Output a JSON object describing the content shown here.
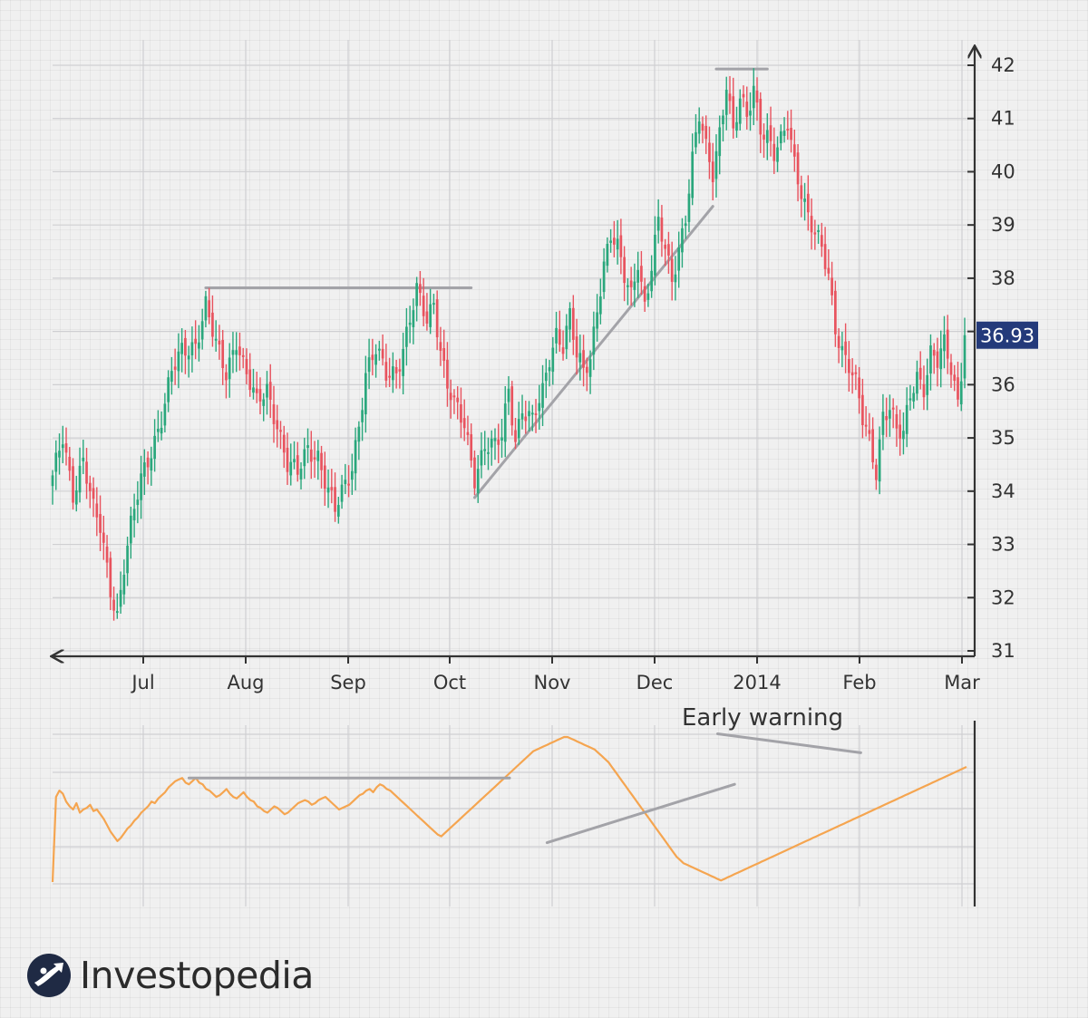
{
  "colors": {
    "up": "#2aa77c",
    "down": "#e8535e",
    "indicator": "#f5a550",
    "trendline": "#a3a3a8",
    "axis": "#333333",
    "price_tag_bg": "#243a7a"
  },
  "logo": {
    "text": "Investopedia",
    "icon": "investopedia-logo-icon"
  },
  "chart_data": [
    {
      "type": "candlestick",
      "x_labels": [
        "Jul",
        "Aug",
        "Sep",
        "Oct",
        "Nov",
        "Dec",
        "2014",
        "Feb",
        "Mar"
      ],
      "y_ticks": [
        31,
        32,
        33,
        34,
        35,
        36,
        37,
        38,
        39,
        40,
        41,
        42
      ],
      "y_tick_labels": [
        "31",
        "32",
        "33",
        "34",
        "35",
        "36",
        "",
        "38",
        "39",
        "40",
        "41",
        "42"
      ],
      "ylim": [
        31,
        42
      ],
      "y_axis_side": "right",
      "last_price_label": "36.93",
      "last_price": 36.93,
      "price_waypoints": [
        [
          0,
          34.2
        ],
        [
          3,
          35.0
        ],
        [
          6,
          34.0
        ],
        [
          9,
          34.6
        ],
        [
          12,
          33.6
        ],
        [
          14,
          33.3
        ],
        [
          17,
          32.2
        ],
        [
          19,
          31.7
        ],
        [
          21,
          32.6
        ],
        [
          23,
          33.3
        ],
        [
          26,
          34.2
        ],
        [
          29,
          34.8
        ],
        [
          32,
          35.4
        ],
        [
          35,
          36.2
        ],
        [
          38,
          36.6
        ],
        [
          42,
          36.8
        ],
        [
          45,
          37.5
        ],
        [
          48,
          36.7
        ],
        [
          51,
          36.2
        ],
        [
          54,
          36.9
        ],
        [
          57,
          36.2
        ],
        [
          60,
          35.6
        ],
        [
          63,
          35.9
        ],
        [
          66,
          35.3
        ],
        [
          69,
          34.5
        ],
        [
          72,
          34.3
        ],
        [
          75,
          34.8
        ],
        [
          78,
          34.7
        ],
        [
          81,
          34.0
        ],
        [
          83,
          33.6
        ],
        [
          86,
          34.1
        ],
        [
          88,
          34.5
        ],
        [
          90,
          35.3
        ],
        [
          92,
          36.2
        ],
        [
          95,
          36.6
        ],
        [
          98,
          36.2
        ],
        [
          101,
          36.3
        ],
        [
          103,
          36.7
        ],
        [
          105,
          37.2
        ],
        [
          107,
          37.7
        ],
        [
          110,
          37.2
        ],
        [
          112,
          37.6
        ],
        [
          114,
          36.7
        ],
        [
          116,
          36.0
        ],
        [
          118,
          35.6
        ],
        [
          121,
          35.2
        ],
        [
          124,
          34.3
        ],
        [
          127,
          34.9
        ],
        [
          130,
          34.8
        ],
        [
          132,
          35.0
        ],
        [
          134,
          35.9
        ],
        [
          136,
          35.0
        ],
        [
          138,
          35.6
        ],
        [
          141,
          35.3
        ],
        [
          144,
          35.8
        ],
        [
          146,
          36.5
        ],
        [
          148,
          37.0
        ],
        [
          150,
          36.8
        ],
        [
          152,
          37.3
        ],
        [
          154,
          36.5
        ],
        [
          156,
          36.2
        ],
        [
          158,
          36.5
        ],
        [
          160,
          37.5
        ],
        [
          162,
          38.3
        ],
        [
          164,
          38.8
        ],
        [
          166,
          38.5
        ],
        [
          168,
          38.0
        ],
        [
          170,
          37.7
        ],
        [
          172,
          38.4
        ],
        [
          174,
          37.5
        ],
        [
          176,
          38.2
        ],
        [
          178,
          39.0
        ],
        [
          180,
          38.5
        ],
        [
          182,
          38.0
        ],
        [
          184,
          38.6
        ],
        [
          186,
          39.2
        ],
        [
          188,
          40.2
        ],
        [
          190,
          41.0
        ],
        [
          192,
          40.4
        ],
        [
          194,
          40.0
        ],
        [
          196,
          40.8
        ],
        [
          198,
          41.7
        ],
        [
          200,
          40.7
        ],
        [
          202,
          41.3
        ],
        [
          204,
          41.0
        ],
        [
          206,
          41.6
        ],
        [
          208,
          40.9
        ],
        [
          210,
          40.7
        ],
        [
          212,
          40.3
        ],
        [
          214,
          40.5
        ],
        [
          216,
          40.9
        ],
        [
          218,
          40.2
        ],
        [
          220,
          39.7
        ],
        [
          222,
          39.2
        ],
        [
          224,
          38.8
        ],
        [
          226,
          38.5
        ],
        [
          228,
          38.0
        ],
        [
          230,
          37.1
        ],
        [
          232,
          36.7
        ],
        [
          234,
          36.4
        ],
        [
          236,
          36.0
        ],
        [
          238,
          35.3
        ],
        [
          240,
          34.9
        ],
        [
          242,
          34.4
        ],
        [
          244,
          35.5
        ],
        [
          246,
          35.6
        ],
        [
          248,
          35.1
        ],
        [
          250,
          35.0
        ],
        [
          252,
          35.8
        ],
        [
          254,
          36.2
        ],
        [
          256,
          36.0
        ],
        [
          258,
          36.6
        ],
        [
          260,
          36.4
        ],
        [
          262,
          36.7
        ],
        [
          264,
          36.3
        ],
        [
          266,
          35.7
        ],
        [
          268,
          36.9
        ]
      ],
      "trendlines": [
        {
          "kind": "resistance",
          "from": [
            45,
            37.82
          ],
          "to": [
            123,
            37.82
          ]
        },
        {
          "kind": "support",
          "from": [
            124,
            33.88
          ],
          "to": [
            194,
            39.35
          ]
        },
        {
          "kind": "resistance",
          "from": [
            195,
            41.93
          ],
          "to": [
            210,
            41.93
          ]
        }
      ]
    },
    {
      "type": "line",
      "series": [
        {
          "values": [
            4,
            58,
            62,
            60,
            55,
            52,
            50,
            54,
            48,
            50,
            51,
            53,
            49,
            50,
            47,
            44,
            40,
            36,
            33,
            30,
            32,
            35,
            38,
            40,
            43,
            45,
            48,
            50,
            52,
            55,
            54,
            57,
            59,
            61,
            64,
            66,
            68,
            69,
            70,
            67,
            66,
            68,
            70,
            67,
            66,
            63,
            62,
            60,
            58,
            59,
            61,
            63,
            60,
            58,
            57,
            59,
            61,
            58,
            56,
            55,
            52,
            51,
            49,
            48,
            50,
            52,
            51,
            49,
            47,
            48,
            50,
            52,
            54,
            55,
            56,
            55,
            53,
            54,
            56,
            57,
            58,
            56,
            54,
            52,
            50,
            51,
            52,
            53,
            55,
            57,
            59,
            60,
            62,
            63,
            61,
            64,
            66,
            65,
            63,
            62,
            60,
            58,
            56,
            54,
            52,
            50,
            48,
            46,
            44,
            42,
            40,
            38,
            36,
            34,
            33,
            35,
            37,
            39,
            41,
            43,
            45,
            47,
            49,
            51,
            53,
            55,
            57,
            59,
            61,
            63,
            65,
            67,
            69,
            71,
            73,
            75,
            77,
            79,
            81,
            83,
            85,
            87,
            88,
            89,
            90,
            91,
            92,
            93,
            94,
            95,
            96,
            96,
            95,
            94,
            93,
            92,
            91,
            90,
            89,
            88,
            86,
            84,
            82,
            80,
            77,
            74,
            71,
            68,
            65,
            62,
            59,
            56,
            53,
            50,
            47,
            44,
            41,
            38,
            35,
            32,
            29,
            26,
            23,
            20,
            18,
            16,
            15,
            14,
            13,
            12,
            11,
            10,
            9,
            8,
            7,
            6,
            5,
            6,
            7,
            8,
            9,
            10,
            11,
            12,
            13,
            14,
            15,
            16,
            17,
            18,
            19,
            20,
            21,
            22,
            23,
            24,
            25,
            26,
            27,
            28,
            29,
            30,
            31,
            32,
            33,
            34,
            35,
            36,
            37,
            38,
            39,
            40,
            41,
            42,
            43,
            44,
            45,
            46,
            47,
            48,
            49,
            50,
            51,
            52,
            53,
            54,
            55,
            56,
            57,
            58,
            59,
            60,
            61,
            62,
            63,
            64,
            65,
            66,
            67,
            68,
            69,
            70,
            71,
            72,
            73,
            74,
            75,
            76,
            77
          ]
        }
      ],
      "annotation": "Early warning",
      "trendlines": [
        {
          "kind": "resistance",
          "from": [
            40,
            70
          ],
          "to": [
            134,
            70
          ]
        },
        {
          "kind": "support",
          "from": [
            145,
            29
          ],
          "to": [
            200,
            66
          ]
        },
        {
          "kind": "resistance",
          "from": [
            195,
            98
          ],
          "to": [
            237,
            86
          ]
        }
      ]
    }
  ]
}
